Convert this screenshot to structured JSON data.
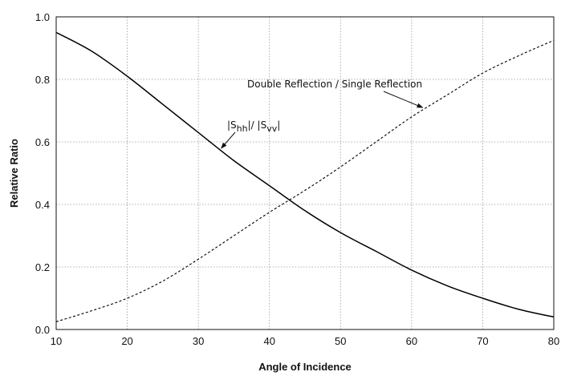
{
  "chart_data": {
    "type": "line",
    "title": "",
    "xlabel": "Angle of Incidence",
    "ylabel": "Relative Ratio",
    "xlim": [
      10,
      80
    ],
    "ylim": [
      0.0,
      1.0
    ],
    "grid": true,
    "x_ticks": [
      "10",
      "20",
      "30",
      "40",
      "50",
      "60",
      "70",
      "80"
    ],
    "y_ticks": [
      "0.0",
      "0.2",
      "0.4",
      "0.6",
      "0.8",
      "1.0"
    ],
    "series": [
      {
        "name": "|Shh|/ |Svv|",
        "style": "solid",
        "color": "#000000",
        "x": [
          10,
          15,
          20,
          25,
          30,
          35,
          40,
          45,
          50,
          55,
          60,
          65,
          70,
          75,
          80
        ],
        "y": [
          0.95,
          0.89,
          0.81,
          0.72,
          0.63,
          0.54,
          0.46,
          0.38,
          0.31,
          0.25,
          0.19,
          0.14,
          0.1,
          0.065,
          0.04
        ]
      },
      {
        "name": "Double Reflection / Single Reflection",
        "style": "dashed",
        "color": "#000000",
        "x": [
          10,
          15,
          20,
          25,
          30,
          35,
          40,
          45,
          50,
          55,
          60,
          65,
          70,
          75,
          80
        ],
        "y": [
          0.025,
          0.06,
          0.1,
          0.155,
          0.225,
          0.3,
          0.375,
          0.445,
          0.52,
          0.6,
          0.68,
          0.75,
          0.82,
          0.875,
          0.925
        ]
      }
    ],
    "annotations": [
      {
        "parts": [
          {
            "text": "|S",
            "sub": false
          },
          {
            "text": "hh",
            "sub": true
          },
          {
            "text": "|/ |S",
            "sub": false
          },
          {
            "text": "vv",
            "sub": true
          },
          {
            "text": "|",
            "sub": false
          }
        ],
        "arrow_to": [
          33,
          0.59
        ]
      },
      {
        "text": "Double Reflection / Single Reflection",
        "arrow_to": [
          62,
          0.715
        ]
      }
    ]
  }
}
